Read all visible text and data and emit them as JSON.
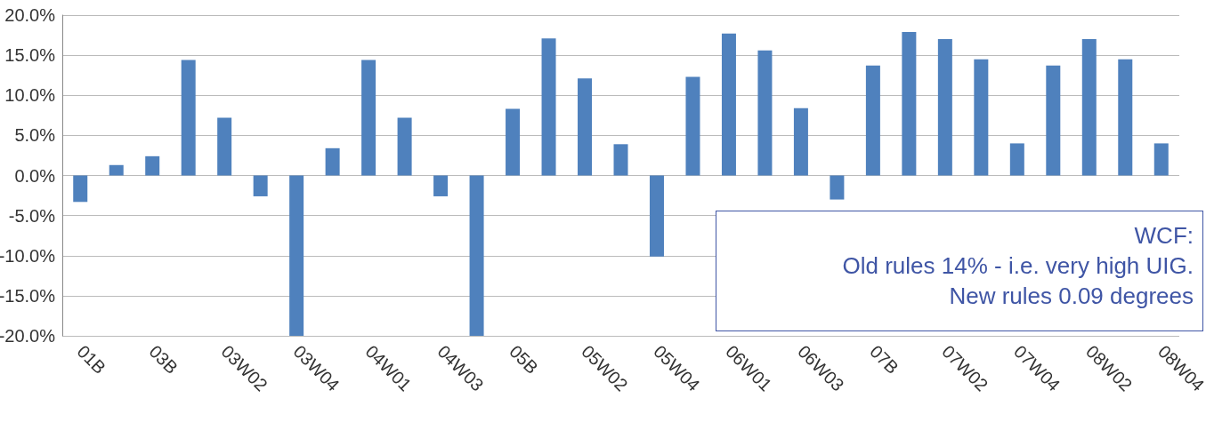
{
  "chart_data": {
    "type": "bar",
    "categories": [
      "01B",
      null,
      "03B",
      null,
      "03W02",
      null,
      "03W04",
      null,
      "04W01",
      null,
      "04W03",
      null,
      "05B",
      null,
      "05W02",
      null,
      "05W04",
      null,
      "06W01",
      null,
      "06W03",
      null,
      "07B",
      null,
      "07W02",
      null,
      "07W04",
      null,
      "08W02",
      null,
      "08W04"
    ],
    "values": [
      -3.3,
      1.3,
      2.4,
      14.4,
      7.2,
      -2.6,
      -20,
      3.4,
      14.4,
      7.2,
      -2.6,
      -20,
      8.3,
      17.1,
      12.1,
      3.9,
      -10.1,
      12.3,
      17.7,
      15.6,
      8.4,
      -3.0,
      13.7,
      17.9,
      17.0,
      14.5,
      4.0,
      13.7,
      17.0,
      14.5,
      4.0
    ],
    "color": "#4f81bd",
    "ylim": [
      -20,
      20
    ],
    "yticks": [
      {
        "value": -20,
        "label": "-20.0%"
      },
      {
        "value": -15,
        "label": "-15.0%"
      },
      {
        "value": -10,
        "label": "-10.0%"
      },
      {
        "value": -5,
        "label": "-5.0%"
      },
      {
        "value": 0,
        "label": "0.0%"
      },
      {
        "value": 5,
        "label": "5.0%"
      },
      {
        "value": 10,
        "label": "10.0%"
      },
      {
        "value": 15,
        "label": "15.0%"
      },
      {
        "value": 20,
        "label": "20.0%"
      }
    ],
    "grid": "y",
    "annotations": [
      "WCF:",
      "Old rules 14% - i.e. very high UIG.",
      "New rules 0.09 degrees"
    ]
  }
}
